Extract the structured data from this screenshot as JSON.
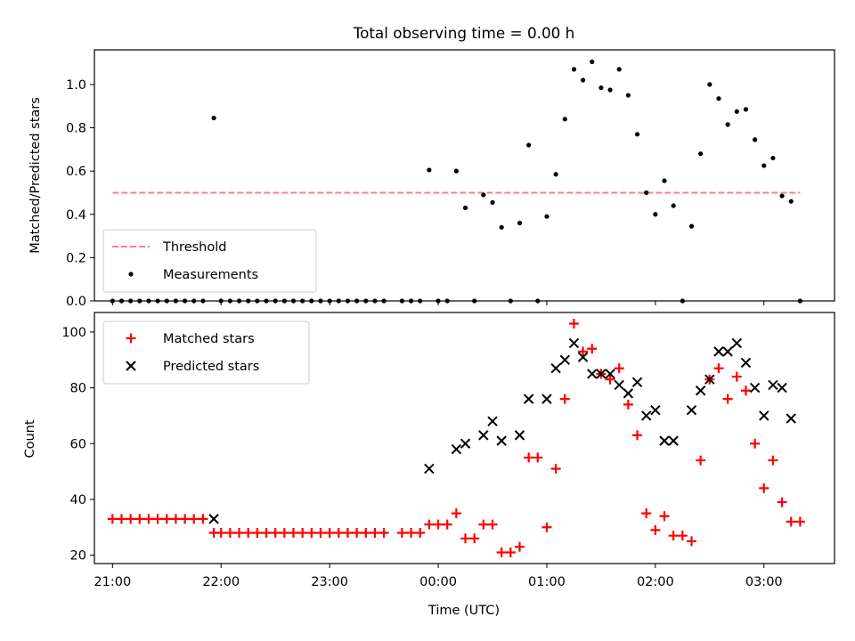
{
  "chart_data": [
    {
      "type": "scatter",
      "title": "Total observing time = 0.00 h",
      "ylabel": "Matched/Predicted stars",
      "xlim": [
        "20:50",
        "03:39"
      ],
      "ylim": [
        0,
        1.16
      ],
      "yticks": [
        0.0,
        0.2,
        0.4,
        0.6,
        0.8,
        1.0
      ],
      "ytick_labels": [
        "0.0",
        "0.2",
        "0.4",
        "0.6",
        "0.8",
        "1.0"
      ],
      "legend_location": "lower left",
      "threshold": {
        "name": "Threshold",
        "y": 0.5,
        "x_start": "21:00",
        "x_end": "03:20",
        "color": "#ff7f7f",
        "style": "dashed"
      },
      "series": [
        {
          "name": "Measurements",
          "color": "#000000",
          "marker": "dot",
          "points": [
            [
              "21:00",
              0.0
            ],
            [
              "21:05",
              0.0
            ],
            [
              "21:10",
              0.0
            ],
            [
              "21:15",
              0.0
            ],
            [
              "21:20",
              0.0
            ],
            [
              "21:25",
              0.0
            ],
            [
              "21:30",
              0.0
            ],
            [
              "21:35",
              0.0
            ],
            [
              "21:40",
              0.0
            ],
            [
              "21:45",
              0.0
            ],
            [
              "21:50",
              0.0
            ],
            [
              "21:56",
              0.845
            ],
            [
              "22:00",
              0.0
            ],
            [
              "22:05",
              0.0
            ],
            [
              "22:10",
              0.0
            ],
            [
              "22:15",
              0.0
            ],
            [
              "22:20",
              0.0
            ],
            [
              "22:25",
              0.0
            ],
            [
              "22:30",
              0.0
            ],
            [
              "22:35",
              0.0
            ],
            [
              "22:40",
              0.0
            ],
            [
              "22:45",
              0.0
            ],
            [
              "22:50",
              0.0
            ],
            [
              "22:55",
              0.0
            ],
            [
              "23:00",
              0.0
            ],
            [
              "23:05",
              0.0
            ],
            [
              "23:10",
              0.0
            ],
            [
              "23:15",
              0.0
            ],
            [
              "23:20",
              0.0
            ],
            [
              "23:25",
              0.0
            ],
            [
              "23:30",
              0.0
            ],
            [
              "23:40",
              0.0
            ],
            [
              "23:45",
              0.0
            ],
            [
              "23:50",
              0.0
            ],
            [
              "23:55",
              0.605
            ],
            [
              "00:00",
              0.0
            ],
            [
              "00:05",
              0.0
            ],
            [
              "00:10",
              0.6
            ],
            [
              "00:15",
              0.43
            ],
            [
              "00:20",
              0.0
            ],
            [
              "00:25",
              0.49
            ],
            [
              "00:30",
              0.455
            ],
            [
              "00:35",
              0.34
            ],
            [
              "00:40",
              0.0
            ],
            [
              "00:45",
              0.36
            ],
            [
              "00:50",
              0.72
            ],
            [
              "00:55",
              0.0
            ],
            [
              "01:00",
              0.39
            ],
            [
              "01:05",
              0.585
            ],
            [
              "01:10",
              0.84
            ],
            [
              "01:15",
              1.07
            ],
            [
              "01:20",
              1.02
            ],
            [
              "01:25",
              1.105
            ],
            [
              "01:30",
              0.985
            ],
            [
              "01:35",
              0.975
            ],
            [
              "01:40",
              1.07
            ],
            [
              "01:45",
              0.95
            ],
            [
              "01:50",
              0.77
            ],
            [
              "01:55",
              0.5
            ],
            [
              "02:00",
              0.4
            ],
            [
              "02:05",
              0.555
            ],
            [
              "02:10",
              0.44
            ],
            [
              "02:15",
              0.0
            ],
            [
              "02:20",
              0.345
            ],
            [
              "02:25",
              0.68
            ],
            [
              "02:30",
              1.0
            ],
            [
              "02:35",
              0.935
            ],
            [
              "02:40",
              0.815
            ],
            [
              "02:45",
              0.875
            ],
            [
              "02:50",
              0.885
            ],
            [
              "02:55",
              0.745
            ],
            [
              "03:00",
              0.625
            ],
            [
              "03:05",
              0.66
            ],
            [
              "03:10",
              0.485
            ],
            [
              "03:15",
              0.46
            ],
            [
              "03:20",
              0.0
            ]
          ]
        }
      ]
    },
    {
      "type": "scatter",
      "xlabel": "Time (UTC)",
      "ylabel": "Count",
      "xlim": [
        "20:50",
        "03:39"
      ],
      "ylim": [
        17,
        107
      ],
      "yticks": [
        20,
        40,
        60,
        80,
        100
      ],
      "ytick_labels": [
        "20",
        "40",
        "60",
        "80",
        "100"
      ],
      "xticks": [
        "21:00",
        "22:00",
        "23:00",
        "00:00",
        "01:00",
        "02:00",
        "03:00"
      ],
      "xtick_labels": [
        "21:00",
        "22:00",
        "23:00",
        "00:00",
        "01:00",
        "02:00",
        "03:00"
      ],
      "legend_location": "upper left",
      "series": [
        {
          "name": "Matched stars",
          "color": "#ff0000",
          "marker": "plus",
          "points": [
            [
              "21:00",
              33
            ],
            [
              "21:05",
              33
            ],
            [
              "21:10",
              33
            ],
            [
              "21:15",
              33
            ],
            [
              "21:20",
              33
            ],
            [
              "21:25",
              33
            ],
            [
              "21:30",
              33
            ],
            [
              "21:35",
              33
            ],
            [
              "21:40",
              33
            ],
            [
              "21:45",
              33
            ],
            [
              "21:50",
              33
            ],
            [
              "21:56",
              28
            ],
            [
              "22:00",
              28
            ],
            [
              "22:05",
              28
            ],
            [
              "22:10",
              28
            ],
            [
              "22:15",
              28
            ],
            [
              "22:20",
              28
            ],
            [
              "22:25",
              28
            ],
            [
              "22:30",
              28
            ],
            [
              "22:35",
              28
            ],
            [
              "22:40",
              28
            ],
            [
              "22:45",
              28
            ],
            [
              "22:50",
              28
            ],
            [
              "22:55",
              28
            ],
            [
              "23:00",
              28
            ],
            [
              "23:05",
              28
            ],
            [
              "23:10",
              28
            ],
            [
              "23:15",
              28
            ],
            [
              "23:20",
              28
            ],
            [
              "23:25",
              28
            ],
            [
              "23:30",
              28
            ],
            [
              "23:40",
              28
            ],
            [
              "23:45",
              28
            ],
            [
              "23:50",
              28
            ],
            [
              "23:55",
              31
            ],
            [
              "00:00",
              31
            ],
            [
              "00:05",
              31
            ],
            [
              "00:10",
              35
            ],
            [
              "00:15",
              26
            ],
            [
              "00:20",
              26
            ],
            [
              "00:25",
              31
            ],
            [
              "00:30",
              31
            ],
            [
              "00:35",
              21
            ],
            [
              "00:40",
              21
            ],
            [
              "00:45",
              23
            ],
            [
              "00:50",
              55
            ],
            [
              "00:55",
              55
            ],
            [
              "01:00",
              30
            ],
            [
              "01:05",
              51
            ],
            [
              "01:10",
              76
            ],
            [
              "01:15",
              103
            ],
            [
              "01:20",
              93
            ],
            [
              "01:25",
              94
            ],
            [
              "01:30",
              85
            ],
            [
              "01:35",
              83
            ],
            [
              "01:40",
              87
            ],
            [
              "01:45",
              74
            ],
            [
              "01:50",
              63
            ],
            [
              "01:55",
              35
            ],
            [
              "02:00",
              29
            ],
            [
              "02:05",
              34
            ],
            [
              "02:10",
              27
            ],
            [
              "02:15",
              27
            ],
            [
              "02:20",
              25
            ],
            [
              "02:25",
              54
            ],
            [
              "02:30",
              83
            ],
            [
              "02:35",
              87
            ],
            [
              "02:40",
              76
            ],
            [
              "02:45",
              84
            ],
            [
              "02:50",
              79
            ],
            [
              "02:55",
              60
            ],
            [
              "03:00",
              44
            ],
            [
              "03:05",
              54
            ],
            [
              "03:10",
              39
            ],
            [
              "03:15",
              32
            ],
            [
              "03:20",
              32
            ]
          ]
        },
        {
          "name": "Predicted stars",
          "color": "#000000",
          "marker": "x",
          "points": [
            [
              "21:56",
              33
            ],
            [
              "23:55",
              51
            ],
            [
              "00:10",
              58
            ],
            [
              "00:15",
              60
            ],
            [
              "00:25",
              63
            ],
            [
              "00:30",
              68
            ],
            [
              "00:35",
              61
            ],
            [
              "00:45",
              63
            ],
            [
              "00:50",
              76
            ],
            [
              "01:00",
              76
            ],
            [
              "01:05",
              87
            ],
            [
              "01:10",
              90
            ],
            [
              "01:15",
              96
            ],
            [
              "01:20",
              91
            ],
            [
              "01:25",
              85
            ],
            [
              "01:30",
              85
            ],
            [
              "01:35",
              85
            ],
            [
              "01:40",
              81
            ],
            [
              "01:45",
              78
            ],
            [
              "01:50",
              82
            ],
            [
              "01:55",
              70
            ],
            [
              "02:00",
              72
            ],
            [
              "02:05",
              61
            ],
            [
              "02:10",
              61
            ],
            [
              "02:20",
              72
            ],
            [
              "02:25",
              79
            ],
            [
              "02:30",
              83
            ],
            [
              "02:35",
              93
            ],
            [
              "02:40",
              93
            ],
            [
              "02:45",
              96
            ],
            [
              "02:50",
              89
            ],
            [
              "02:55",
              80
            ],
            [
              "03:00",
              70
            ],
            [
              "03:05",
              81
            ],
            [
              "03:10",
              80
            ],
            [
              "03:15",
              69
            ]
          ]
        }
      ]
    }
  ]
}
